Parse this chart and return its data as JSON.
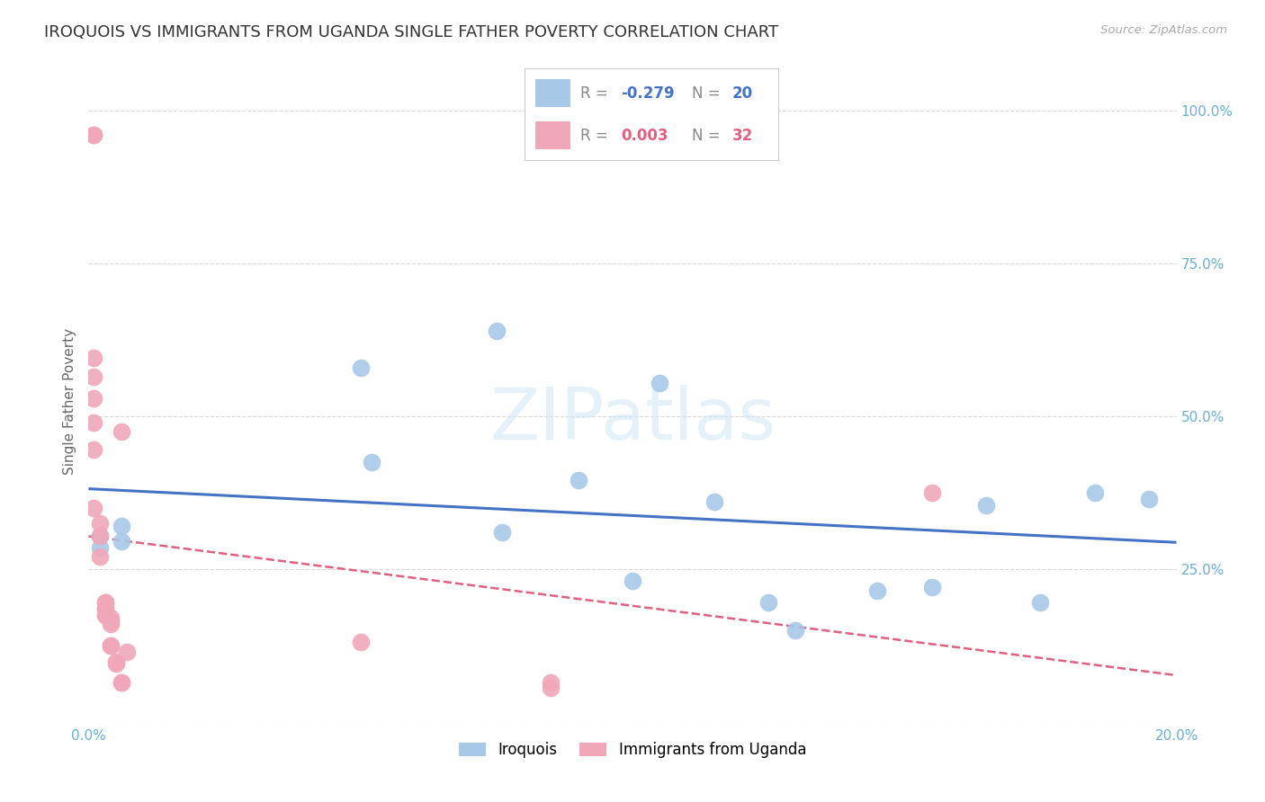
{
  "title": "IROQUOIS VS IMMIGRANTS FROM UGANDA SINGLE FATHER POVERTY CORRELATION CHART",
  "source": "Source: ZipAtlas.com",
  "ylabel": "Single Father Poverty",
  "xlim": [
    0.0,
    0.2
  ],
  "ylim": [
    0.0,
    1.05
  ],
  "xticks": [
    0.0,
    0.04,
    0.08,
    0.12,
    0.16,
    0.2
  ],
  "yticks": [
    0.0,
    0.25,
    0.5,
    0.75,
    1.0
  ],
  "iroquois_color": "#a8c8e8",
  "uganda_color": "#f0a8b8",
  "iroquois_R": -0.279,
  "iroquois_N": 20,
  "uganda_R": 0.003,
  "uganda_N": 32,
  "iroquois_x": [
    0.002,
    0.002,
    0.006,
    0.006,
    0.05,
    0.052,
    0.075,
    0.076,
    0.09,
    0.1,
    0.105,
    0.115,
    0.125,
    0.13,
    0.145,
    0.155,
    0.165,
    0.175,
    0.185,
    0.195
  ],
  "iroquois_y": [
    0.285,
    0.305,
    0.295,
    0.32,
    0.58,
    0.425,
    0.64,
    0.31,
    0.395,
    0.23,
    0.555,
    0.36,
    0.195,
    0.15,
    0.215,
    0.22,
    0.355,
    0.195,
    0.375,
    0.365
  ],
  "uganda_x": [
    0.001,
    0.001,
    0.001,
    0.001,
    0.001,
    0.001,
    0.001,
    0.001,
    0.002,
    0.002,
    0.002,
    0.003,
    0.003,
    0.003,
    0.003,
    0.003,
    0.003,
    0.004,
    0.004,
    0.004,
    0.004,
    0.004,
    0.005,
    0.005,
    0.006,
    0.006,
    0.006,
    0.007,
    0.05,
    0.085,
    0.085,
    0.155
  ],
  "uganda_y": [
    0.96,
    0.96,
    0.595,
    0.565,
    0.53,
    0.49,
    0.445,
    0.35,
    0.325,
    0.305,
    0.27,
    0.195,
    0.195,
    0.185,
    0.185,
    0.175,
    0.175,
    0.17,
    0.165,
    0.16,
    0.125,
    0.125,
    0.098,
    0.095,
    0.065,
    0.065,
    0.475,
    0.115,
    0.13,
    0.065,
    0.055,
    0.375
  ],
  "iroquois_line_color": "#4472c4",
  "uganda_line_color": "#e06080",
  "background_color": "#ffffff",
  "grid_color": "#d8d8d8",
  "axis_tick_color": "#6baed6",
  "title_fontsize": 13,
  "label_fontsize": 11,
  "tick_fontsize": 11,
  "legend_fontsize": 13,
  "watermark_text": "ZIPatlas",
  "legend_iroquois_R": "-0.279",
  "legend_iroquois_N": "20",
  "legend_uganda_R": "0.003",
  "legend_uganda_N": "32"
}
